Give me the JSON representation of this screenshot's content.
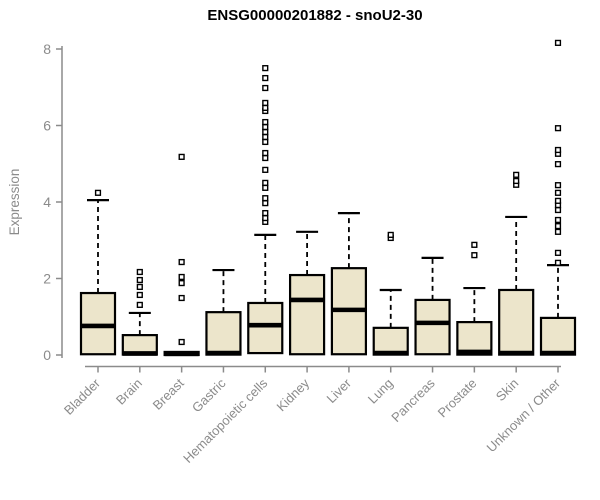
{
  "chart_data": {
    "type": "boxplot",
    "title": "ENSG00000201882 - snoU2-30",
    "ylabel": "Expression",
    "xlabel": "",
    "ylim": [
      0,
      8
    ],
    "yticks": [
      0,
      2,
      4,
      6,
      8
    ],
    "grid": false,
    "legend": "none",
    "colors": {
      "box_fill": "#ece5cb",
      "box_stroke": "#000000",
      "axis": "#8b8b8b",
      "title_color": "#000000"
    },
    "categories": [
      "Bladder",
      "Brain",
      "Breast",
      "Gastric",
      "Hematopoietic cells",
      "Kidney",
      "Liver",
      "Lung",
      "Pancreas",
      "Prostate",
      "Skin",
      "Unknown / Other"
    ],
    "boxes": [
      {
        "label": "Bladder",
        "q1": 0.02,
        "median": 0.76,
        "q3": 1.62,
        "whisker_low": 0.02,
        "whisker_high": 4.05,
        "outliers": [
          4.24
        ]
      },
      {
        "label": "Brain",
        "q1": 0.01,
        "median": 0.04,
        "q3": 0.52,
        "whisker_low": 0.01,
        "whisker_high": 1.1,
        "outliers": [
          1.31,
          1.57,
          1.78,
          1.96,
          2.17
        ]
      },
      {
        "label": "Breast",
        "q1": 0.0,
        "median": 0.03,
        "q3": 0.08,
        "whisker_low": 0.0,
        "whisker_high": 0.08,
        "outliers": [
          0.34,
          1.49,
          1.88,
          2.04,
          2.43,
          5.18
        ]
      },
      {
        "label": "Gastric",
        "q1": 0.01,
        "median": 0.05,
        "q3": 1.12,
        "whisker_low": 0.01,
        "whisker_high": 2.22,
        "outliers": []
      },
      {
        "label": "Hematopoietic cells",
        "q1": 0.05,
        "median": 0.78,
        "q3": 1.36,
        "whisker_low": 0.05,
        "whisker_high": 3.14,
        "outliers": [
          3.48,
          3.58,
          3.71,
          3.97,
          4.1,
          4.37,
          4.5,
          4.84,
          5.15,
          5.28,
          5.57,
          5.7,
          5.83,
          5.96,
          6.09,
          6.38,
          6.46,
          6.59,
          6.98,
          7.24,
          7.5
        ]
      },
      {
        "label": "Kidney",
        "q1": 0.02,
        "median": 1.44,
        "q3": 2.09,
        "whisker_low": 0.02,
        "whisker_high": 3.22,
        "outliers": []
      },
      {
        "label": "Liver",
        "q1": 0.02,
        "median": 1.18,
        "q3": 2.27,
        "whisker_low": 0.02,
        "whisker_high": 3.71,
        "outliers": []
      },
      {
        "label": "Lung",
        "q1": 0.01,
        "median": 0.05,
        "q3": 0.71,
        "whisker_low": 0.01,
        "whisker_high": 1.7,
        "outliers": [
          3.06,
          3.14
        ]
      },
      {
        "label": "Pancreas",
        "q1": 0.02,
        "median": 0.84,
        "q3": 1.44,
        "whisker_low": 0.02,
        "whisker_high": 2.54,
        "outliers": []
      },
      {
        "label": "Prostate",
        "q1": 0.01,
        "median": 0.08,
        "q3": 0.86,
        "whisker_low": 0.01,
        "whisker_high": 1.75,
        "outliers": [
          2.61,
          2.88
        ]
      },
      {
        "label": "Skin",
        "q1": 0.01,
        "median": 0.05,
        "q3": 1.7,
        "whisker_low": 0.01,
        "whisker_high": 3.61,
        "outliers": [
          4.45,
          4.55,
          4.71
        ]
      },
      {
        "label": "Unknown / Other",
        "q1": 0.01,
        "median": 0.05,
        "q3": 0.97,
        "whisker_low": 0.01,
        "whisker_high": 2.35,
        "outliers": [
          2.41,
          2.67,
          3.22,
          3.37,
          3.53,
          3.79,
          3.92,
          4.03,
          4.24,
          4.44,
          4.99,
          5.26,
          5.36,
          5.93,
          8.16
        ]
      }
    ]
  }
}
